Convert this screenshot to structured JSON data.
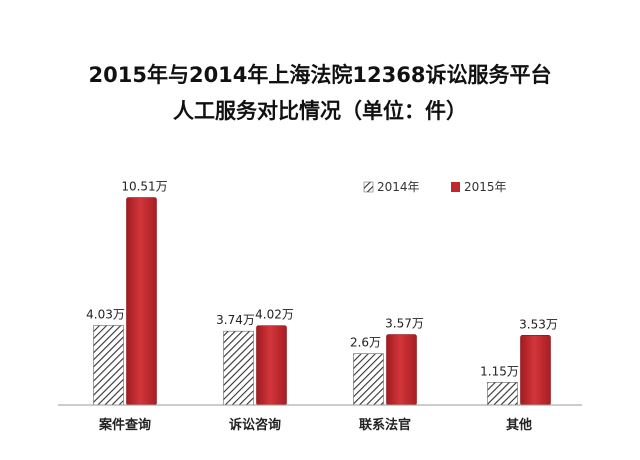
{
  "chart_data": {
    "type": "bar",
    "title_lines": [
      "2015年与2014年上海法院12368诉讼服务平台",
      "人工服务对比情况（单位：件）"
    ],
    "categories": [
      "案件查询",
      "诉讼咨询",
      "联系法官",
      "其他"
    ],
    "series": [
      {
        "name": "2014年",
        "values": [
          4.03,
          3.74,
          2.6,
          1.15
        ],
        "labels": [
          "4.03万",
          "3.74万",
          "2.6万",
          "1.15万"
        ],
        "fill": "hatch"
      },
      {
        "name": "2015年",
        "values": [
          10.51,
          4.02,
          3.57,
          3.53
        ],
        "labels": [
          "10.51万",
          "4.02万",
          "3.57万",
          "3.53万"
        ],
        "color": "#c0272d"
      }
    ],
    "ylim": [
      0,
      11.5
    ],
    "legend_position": "top-right",
    "grid": false
  }
}
